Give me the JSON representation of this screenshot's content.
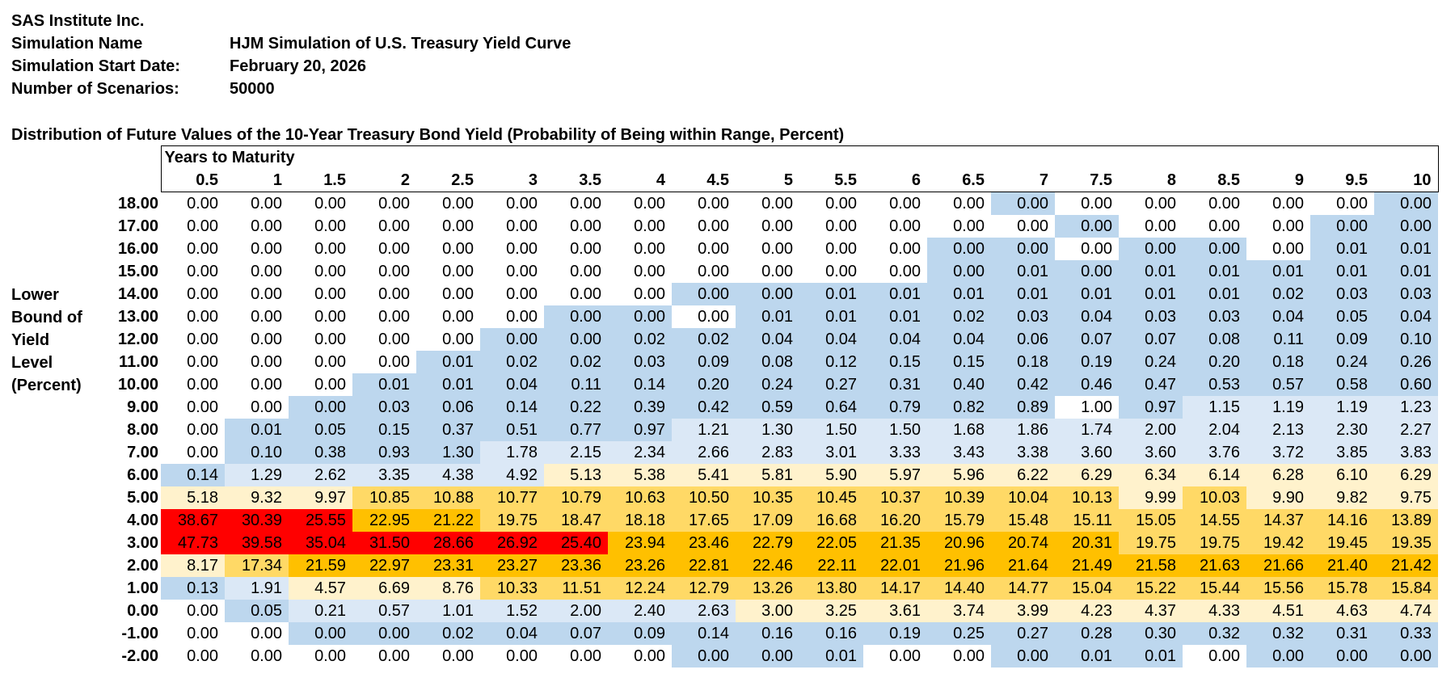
{
  "header": {
    "company": "SAS Institute Inc.",
    "rows": [
      {
        "label": "Simulation Name",
        "value": "HJM Simulation of U.S. Treasury Yield Curve"
      },
      {
        "label": "Simulation Start Date:",
        "value": "February 20, 2026"
      },
      {
        "label": "Number of Scenarios:",
        "value": "50000"
      }
    ]
  },
  "table_title": "Distribution of Future Values of the 10-Year Treasury Bond Yield (Probability of Being within Range, Percent)",
  "years_header": "Years to Maturity",
  "side_label": [
    "Lower",
    "Bound of",
    "Yield",
    "Level",
    "(Percent)"
  ],
  "colors": {
    "white": "#ffffff",
    "lightblue": "#dbe8f6",
    "blue": "#bdd7ee",
    "paleyellow": "#fff2cc",
    "yellow": "#ffd966",
    "orange": "#ffc000",
    "red": "#ff0000"
  },
  "columns": [
    "0.5",
    "1",
    "1.5",
    "2",
    "2.5",
    "3",
    "3.5",
    "4",
    "4.5",
    "5",
    "5.5",
    "6",
    "6.5",
    "7",
    "7.5",
    "8",
    "8.5",
    "9",
    "9.5",
    "10"
  ],
  "rows": [
    {
      "label": "18.00",
      "values": [
        "0.00",
        "0.00",
        "0.00",
        "0.00",
        "0.00",
        "0.00",
        "0.00",
        "0.00",
        "0.00",
        "0.00",
        "0.00",
        "0.00",
        "0.00",
        "0.00",
        "0.00",
        "0.00",
        "0.00",
        "0.00",
        "0.00",
        "0.00"
      ]
    },
    {
      "label": "17.00",
      "values": [
        "0.00",
        "0.00",
        "0.00",
        "0.00",
        "0.00",
        "0.00",
        "0.00",
        "0.00",
        "0.00",
        "0.00",
        "0.00",
        "0.00",
        "0.00",
        "0.00",
        "0.00",
        "0.00",
        "0.00",
        "0.00",
        "0.00",
        "0.00"
      ]
    },
    {
      "label": "16.00",
      "values": [
        "0.00",
        "0.00",
        "0.00",
        "0.00",
        "0.00",
        "0.00",
        "0.00",
        "0.00",
        "0.00",
        "0.00",
        "0.00",
        "0.00",
        "0.00",
        "0.00",
        "0.00",
        "0.00",
        "0.00",
        "0.00",
        "0.01",
        "0.01"
      ]
    },
    {
      "label": "15.00",
      "values": [
        "0.00",
        "0.00",
        "0.00",
        "0.00",
        "0.00",
        "0.00",
        "0.00",
        "0.00",
        "0.00",
        "0.00",
        "0.00",
        "0.00",
        "0.00",
        "0.01",
        "0.00",
        "0.01",
        "0.01",
        "0.01",
        "0.01",
        "0.01"
      ]
    },
    {
      "label": "14.00",
      "values": [
        "0.00",
        "0.00",
        "0.00",
        "0.00",
        "0.00",
        "0.00",
        "0.00",
        "0.00",
        "0.00",
        "0.00",
        "0.01",
        "0.01",
        "0.01",
        "0.01",
        "0.01",
        "0.01",
        "0.01",
        "0.02",
        "0.03",
        "0.03"
      ]
    },
    {
      "label": "13.00",
      "values": [
        "0.00",
        "0.00",
        "0.00",
        "0.00",
        "0.00",
        "0.00",
        "0.00",
        "0.00",
        "0.00",
        "0.01",
        "0.01",
        "0.01",
        "0.02",
        "0.03",
        "0.04",
        "0.03",
        "0.03",
        "0.04",
        "0.05",
        "0.04"
      ]
    },
    {
      "label": "12.00",
      "values": [
        "0.00",
        "0.00",
        "0.00",
        "0.00",
        "0.00",
        "0.00",
        "0.00",
        "0.02",
        "0.02",
        "0.04",
        "0.04",
        "0.04",
        "0.04",
        "0.06",
        "0.07",
        "0.07",
        "0.08",
        "0.11",
        "0.09",
        "0.10"
      ]
    },
    {
      "label": "11.00",
      "values": [
        "0.00",
        "0.00",
        "0.00",
        "0.00",
        "0.01",
        "0.02",
        "0.02",
        "0.03",
        "0.09",
        "0.08",
        "0.12",
        "0.15",
        "0.15",
        "0.18",
        "0.19",
        "0.24",
        "0.20",
        "0.18",
        "0.24",
        "0.26"
      ]
    },
    {
      "label": "10.00",
      "values": [
        "0.00",
        "0.00",
        "0.00",
        "0.01",
        "0.01",
        "0.04",
        "0.11",
        "0.14",
        "0.20",
        "0.24",
        "0.27",
        "0.31",
        "0.40",
        "0.42",
        "0.46",
        "0.47",
        "0.53",
        "0.57",
        "0.58",
        "0.60"
      ]
    },
    {
      "label": "9.00",
      "values": [
        "0.00",
        "0.00",
        "0.00",
        "0.03",
        "0.06",
        "0.14",
        "0.22",
        "0.39",
        "0.42",
        "0.59",
        "0.64",
        "0.79",
        "0.82",
        "0.89",
        "1.00",
        "0.97",
        "1.15",
        "1.19",
        "1.19",
        "1.23"
      ]
    },
    {
      "label": "8.00",
      "values": [
        "0.00",
        "0.01",
        "0.05",
        "0.15",
        "0.37",
        "0.51",
        "0.77",
        "0.97",
        "1.21",
        "1.30",
        "1.50",
        "1.50",
        "1.68",
        "1.86",
        "1.74",
        "2.00",
        "2.04",
        "2.13",
        "2.30",
        "2.27"
      ]
    },
    {
      "label": "7.00",
      "values": [
        "0.00",
        "0.10",
        "0.38",
        "0.93",
        "1.30",
        "1.78",
        "2.15",
        "2.34",
        "2.66",
        "2.83",
        "3.01",
        "3.33",
        "3.43",
        "3.38",
        "3.60",
        "3.60",
        "3.76",
        "3.72",
        "3.85",
        "3.83"
      ]
    },
    {
      "label": "6.00",
      "values": [
        "0.14",
        "1.29",
        "2.62",
        "3.35",
        "4.38",
        "4.92",
        "5.13",
        "5.38",
        "5.41",
        "5.81",
        "5.90",
        "5.97",
        "5.96",
        "6.22",
        "6.29",
        "6.34",
        "6.14",
        "6.28",
        "6.10",
        "6.29"
      ]
    },
    {
      "label": "5.00",
      "values": [
        "5.18",
        "9.32",
        "9.97",
        "10.85",
        "10.88",
        "10.77",
        "10.79",
        "10.63",
        "10.50",
        "10.35",
        "10.45",
        "10.37",
        "10.39",
        "10.04",
        "10.13",
        "9.99",
        "10.03",
        "9.90",
        "9.82",
        "9.75"
      ]
    },
    {
      "label": "4.00",
      "values": [
        "38.67",
        "30.39",
        "25.55",
        "22.95",
        "21.22",
        "19.75",
        "18.47",
        "18.18",
        "17.65",
        "17.09",
        "16.68",
        "16.20",
        "15.79",
        "15.48",
        "15.11",
        "15.05",
        "14.55",
        "14.37",
        "14.16",
        "13.89"
      ]
    },
    {
      "label": "3.00",
      "values": [
        "47.73",
        "39.58",
        "35.04",
        "31.50",
        "28.66",
        "26.92",
        "25.40",
        "23.94",
        "23.46",
        "22.79",
        "22.05",
        "21.35",
        "20.96",
        "20.74",
        "20.31",
        "19.75",
        "19.75",
        "19.42",
        "19.45",
        "19.35"
      ]
    },
    {
      "label": "2.00",
      "values": [
        "8.17",
        "17.34",
        "21.59",
        "22.97",
        "23.31",
        "23.27",
        "23.36",
        "23.26",
        "22.81",
        "22.46",
        "22.11",
        "22.01",
        "21.96",
        "21.64",
        "21.49",
        "21.58",
        "21.63",
        "21.66",
        "21.40",
        "21.42"
      ]
    },
    {
      "label": "1.00",
      "values": [
        "0.13",
        "1.91",
        "4.57",
        "6.69",
        "8.76",
        "10.33",
        "11.51",
        "12.24",
        "12.79",
        "13.26",
        "13.80",
        "14.17",
        "14.40",
        "14.77",
        "15.04",
        "15.22",
        "15.44",
        "15.56",
        "15.78",
        "15.84"
      ]
    },
    {
      "label": "0.00",
      "values": [
        "0.00",
        "0.05",
        "0.21",
        "0.57",
        "1.01",
        "1.52",
        "2.00",
        "2.40",
        "2.63",
        "3.00",
        "3.25",
        "3.61",
        "3.74",
        "3.99",
        "4.23",
        "4.37",
        "4.33",
        "4.51",
        "4.63",
        "4.74"
      ]
    },
    {
      "label": "-1.00",
      "values": [
        "0.00",
        "0.00",
        "0.00",
        "0.00",
        "0.02",
        "0.04",
        "0.07",
        "0.09",
        "0.14",
        "0.16",
        "0.16",
        "0.19",
        "0.25",
        "0.27",
        "0.28",
        "0.30",
        "0.32",
        "0.32",
        "0.31",
        "0.33"
      ]
    },
    {
      "label": "-2.00",
      "values": [
        "0.00",
        "0.00",
        "0.00",
        "0.00",
        "0.00",
        "0.00",
        "0.00",
        "0.00",
        "0.00",
        "0.00",
        "0.01",
        "0.00",
        "0.00",
        "0.00",
        "0.01",
        "0.01",
        "0.00",
        "0.00",
        "0.00",
        "0.00"
      ]
    }
  ],
  "fills": [
    [
      "w",
      "w",
      "w",
      "w",
      "w",
      "w",
      "w",
      "w",
      "w",
      "w",
      "w",
      "w",
      "w",
      "B",
      "w",
      "w",
      "w",
      "w",
      "w",
      "B"
    ],
    [
      "w",
      "w",
      "w",
      "w",
      "w",
      "w",
      "w",
      "w",
      "w",
      "w",
      "w",
      "w",
      "w",
      "w",
      "B",
      "w",
      "w",
      "w",
      "B",
      "B"
    ],
    [
      "w",
      "w",
      "w",
      "w",
      "w",
      "w",
      "w",
      "w",
      "w",
      "w",
      "w",
      "w",
      "B",
      "B",
      "w",
      "B",
      "B",
      "w",
      "B",
      "B"
    ],
    [
      "w",
      "w",
      "w",
      "w",
      "w",
      "w",
      "w",
      "w",
      "w",
      "w",
      "w",
      "w",
      "B",
      "B",
      "B",
      "B",
      "B",
      "B",
      "B",
      "B"
    ],
    [
      "w",
      "w",
      "w",
      "w",
      "w",
      "w",
      "w",
      "w",
      "B",
      "B",
      "B",
      "B",
      "B",
      "B",
      "B",
      "B",
      "B",
      "B",
      "B",
      "B"
    ],
    [
      "w",
      "w",
      "w",
      "w",
      "w",
      "w",
      "B",
      "B",
      "w",
      "B",
      "B",
      "B",
      "B",
      "B",
      "B",
      "B",
      "B",
      "B",
      "B",
      "B"
    ],
    [
      "w",
      "w",
      "w",
      "w",
      "w",
      "B",
      "B",
      "B",
      "B",
      "B",
      "B",
      "B",
      "B",
      "B",
      "B",
      "B",
      "B",
      "B",
      "B",
      "B"
    ],
    [
      "w",
      "w",
      "w",
      "w",
      "B",
      "B",
      "B",
      "B",
      "B",
      "B",
      "B",
      "B",
      "B",
      "B",
      "B",
      "B",
      "B",
      "B",
      "B",
      "B"
    ],
    [
      "w",
      "w",
      "w",
      "B",
      "B",
      "B",
      "B",
      "B",
      "B",
      "B",
      "B",
      "B",
      "B",
      "B",
      "B",
      "B",
      "B",
      "B",
      "B",
      "B"
    ],
    [
      "w",
      "w",
      "B",
      "B",
      "B",
      "B",
      "B",
      "B",
      "B",
      "B",
      "B",
      "B",
      "B",
      "B",
      "w",
      "B",
      "L",
      "L",
      "L",
      "L"
    ],
    [
      "w",
      "B",
      "B",
      "B",
      "B",
      "B",
      "B",
      "B",
      "L",
      "L",
      "L",
      "L",
      "L",
      "L",
      "L",
      "L",
      "L",
      "L",
      "L",
      "L"
    ],
    [
      "w",
      "B",
      "B",
      "B",
      "B",
      "L",
      "L",
      "L",
      "L",
      "L",
      "L",
      "L",
      "L",
      "L",
      "L",
      "L",
      "L",
      "L",
      "L",
      "L"
    ],
    [
      "B",
      "L",
      "L",
      "L",
      "L",
      "L",
      "P",
      "P",
      "P",
      "P",
      "P",
      "P",
      "P",
      "P",
      "P",
      "P",
      "P",
      "P",
      "P",
      "P"
    ],
    [
      "P",
      "P",
      "P",
      "Y",
      "Y",
      "Y",
      "Y",
      "Y",
      "Y",
      "Y",
      "Y",
      "Y",
      "Y",
      "Y",
      "Y",
      "P",
      "Y",
      "P",
      "P",
      "P"
    ],
    [
      "R",
      "R",
      "R",
      "O",
      "O",
      "Y",
      "Y",
      "Y",
      "Y",
      "Y",
      "Y",
      "Y",
      "Y",
      "Y",
      "Y",
      "Y",
      "Y",
      "Y",
      "Y",
      "Y"
    ],
    [
      "R",
      "R",
      "R",
      "R",
      "R",
      "R",
      "R",
      "O",
      "O",
      "O",
      "O",
      "O",
      "O",
      "O",
      "O",
      "Y",
      "Y",
      "Y",
      "Y",
      "Y"
    ],
    [
      "P",
      "Y",
      "O",
      "O",
      "O",
      "O",
      "O",
      "O",
      "O",
      "O",
      "O",
      "O",
      "O",
      "O",
      "O",
      "O",
      "O",
      "O",
      "O",
      "O"
    ],
    [
      "B",
      "L",
      "P",
      "P",
      "P",
      "Y",
      "Y",
      "Y",
      "Y",
      "Y",
      "Y",
      "Y",
      "Y",
      "Y",
      "Y",
      "Y",
      "Y",
      "Y",
      "Y",
      "Y"
    ],
    [
      "w",
      "B",
      "L",
      "L",
      "L",
      "L",
      "L",
      "L",
      "L",
      "P",
      "P",
      "P",
      "P",
      "P",
      "P",
      "P",
      "P",
      "P",
      "P",
      "P"
    ],
    [
      "w",
      "w",
      "B",
      "B",
      "B",
      "B",
      "B",
      "B",
      "B",
      "B",
      "B",
      "B",
      "B",
      "B",
      "B",
      "B",
      "B",
      "B",
      "B",
      "B"
    ],
    [
      "w",
      "w",
      "w",
      "w",
      "w",
      "w",
      "w",
      "w",
      "B",
      "B",
      "B",
      "w",
      "w",
      "B",
      "B",
      "B",
      "w",
      "B",
      "B",
      "B"
    ]
  ]
}
